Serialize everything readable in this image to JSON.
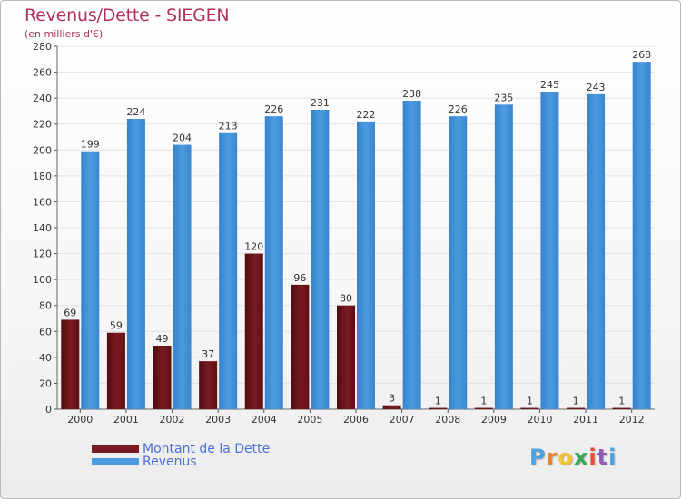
{
  "header": {
    "title": "Revenus/Dette - SIEGEN",
    "subtitle": "(en milliers d'€)"
  },
  "colors": {
    "debt": "#7a1a22",
    "revenue": "#4c9be0",
    "grid": "#e2e2e2",
    "axis_text": "#333333",
    "title": "#b03060",
    "legend_text": "#4d6fd6"
  },
  "chart_data": {
    "type": "bar",
    "title": "Revenus/Dette - SIEGEN",
    "subtitle": "(en milliers d'€)",
    "xlabel": "",
    "ylabel": "",
    "ylim": [
      0,
      280
    ],
    "y_ticks": [
      0,
      20,
      40,
      60,
      80,
      100,
      120,
      140,
      160,
      180,
      200,
      220,
      240,
      260,
      280
    ],
    "grid": true,
    "categories": [
      "2000",
      "2001",
      "2002",
      "2003",
      "2004",
      "2005",
      "2006",
      "2007",
      "2008",
      "2009",
      "2010",
      "2011",
      "2012"
    ],
    "series": [
      {
        "name": "Montant de la Dette",
        "values": [
          69,
          59,
          49,
          37,
          120,
          96,
          80,
          3,
          1,
          1,
          1,
          1,
          1
        ]
      },
      {
        "name": "Revenus",
        "values": [
          199,
          224,
          204,
          213,
          226,
          231,
          222,
          238,
          226,
          235,
          245,
          243,
          268
        ]
      }
    ],
    "legend_position": "bottom-left"
  },
  "legend": {
    "debt_label": "Montant de la Dette",
    "revenue_label": "Revenus"
  },
  "logo": {
    "letters": [
      "P",
      "r",
      "o",
      "x",
      "i",
      "t",
      "i"
    ],
    "colors": [
      "#4aa3df",
      "#e8862a",
      "#f2c230",
      "#3aa655",
      "#e84c3d",
      "#8e5bb5",
      "#4aa3df"
    ]
  }
}
